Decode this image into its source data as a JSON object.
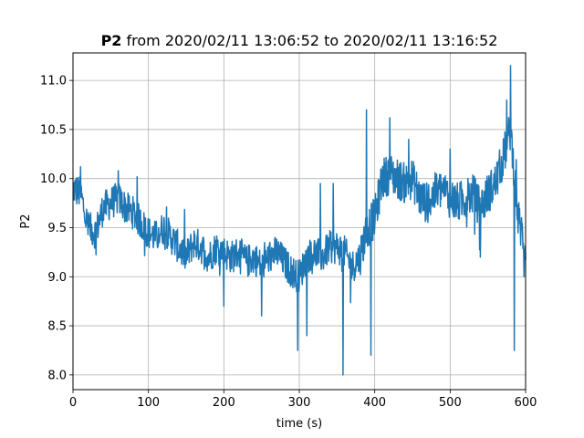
{
  "chart_data": {
    "type": "line",
    "title": {
      "bold": "P2",
      "rest": " from 2020/02/11 13:06:52 to 2020/02/11 13:16:52"
    },
    "xlabel": "time (s)",
    "ylabel": "P2",
    "xlim": [
      0,
      600
    ],
    "ylim": [
      7.85,
      11.28
    ],
    "xticks": [
      0,
      100,
      200,
      300,
      400,
      500,
      600
    ],
    "yticks": [
      8.0,
      8.5,
      9.0,
      9.5,
      10.0,
      10.5,
      11.0
    ],
    "grid": true,
    "series": [
      {
        "color": "#1f77b4",
        "anchors": [
          [
            0,
            9.9
          ],
          [
            10,
            9.85
          ],
          [
            20,
            9.5
          ],
          [
            30,
            9.45
          ],
          [
            40,
            9.7
          ],
          [
            50,
            9.75
          ],
          [
            60,
            9.8
          ],
          [
            70,
            9.7
          ],
          [
            80,
            9.65
          ],
          [
            90,
            9.55
          ],
          [
            100,
            9.45
          ],
          [
            110,
            9.4
          ],
          [
            120,
            9.5
          ],
          [
            130,
            9.4
          ],
          [
            140,
            9.3
          ],
          [
            150,
            9.2
          ],
          [
            160,
            9.35
          ],
          [
            170,
            9.3
          ],
          [
            180,
            9.2
          ],
          [
            190,
            9.3
          ],
          [
            200,
            9.25
          ],
          [
            210,
            9.2
          ],
          [
            220,
            9.25
          ],
          [
            230,
            9.15
          ],
          [
            240,
            9.2
          ],
          [
            250,
            9.1
          ],
          [
            260,
            9.2
          ],
          [
            270,
            9.25
          ],
          [
            280,
            9.15
          ],
          [
            290,
            9.05
          ],
          [
            300,
            9.0
          ],
          [
            310,
            9.2
          ],
          [
            320,
            9.25
          ],
          [
            330,
            9.2
          ],
          [
            340,
            9.3
          ],
          [
            350,
            9.3
          ],
          [
            360,
            9.25
          ],
          [
            370,
            9.1
          ],
          [
            380,
            9.2
          ],
          [
            390,
            9.5
          ],
          [
            400,
            9.6
          ],
          [
            410,
            10.0
          ],
          [
            420,
            10.05
          ],
          [
            430,
            10.0
          ],
          [
            440,
            9.95
          ],
          [
            450,
            10.0
          ],
          [
            460,
            9.8
          ],
          [
            470,
            9.75
          ],
          [
            480,
            9.85
          ],
          [
            490,
            9.9
          ],
          [
            500,
            9.8
          ],
          [
            510,
            9.75
          ],
          [
            520,
            9.8
          ],
          [
            530,
            9.85
          ],
          [
            540,
            9.7
          ],
          [
            550,
            9.85
          ],
          [
            560,
            9.95
          ],
          [
            570,
            10.2
          ],
          [
            580,
            10.5
          ],
          [
            590,
            9.6
          ],
          [
            600,
            9.3
          ]
        ],
        "spikes": [
          [
            389,
            10.7
          ],
          [
            395,
            8.2
          ],
          [
            358,
            8.0
          ],
          [
            298,
            8.25
          ],
          [
            310,
            8.4
          ],
          [
            580,
            11.15
          ],
          [
            585,
            8.25
          ],
          [
            420,
            10.62
          ],
          [
            328,
            9.95
          ],
          [
            345,
            9.95
          ],
          [
            250,
            8.6
          ],
          [
            200,
            8.7
          ],
          [
            445,
            10.4
          ],
          [
            575,
            10.8
          ],
          [
            598,
            9.0
          ],
          [
            10,
            10.12
          ],
          [
            60,
            10.08
          ],
          [
            85,
            10.02
          ],
          [
            540,
            9.2
          ],
          [
            500,
            10.3
          ]
        ]
      }
    ]
  }
}
